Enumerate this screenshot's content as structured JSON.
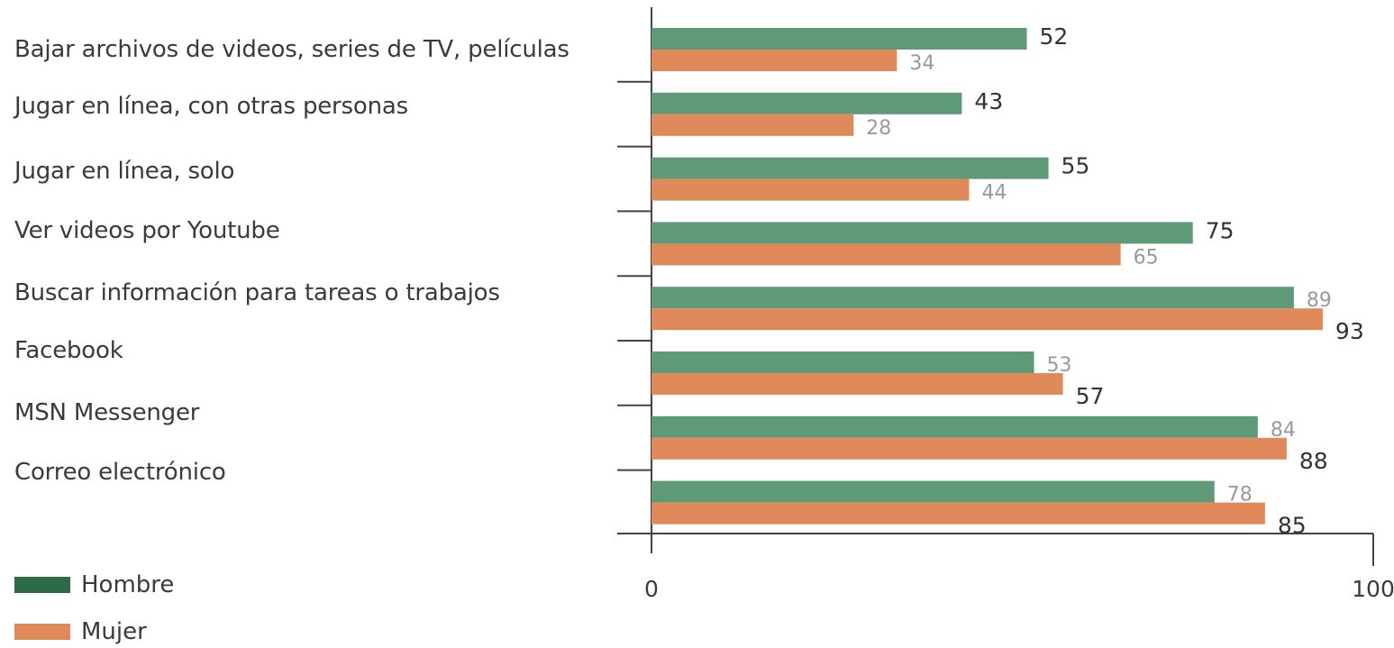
{
  "chart_data": {
    "type": "bar",
    "orientation": "horizontal",
    "categories": [
      "Bajar archivos de videos, series de TV, películas",
      "Jugar en línea, con otras personas",
      "Jugar en línea, solo",
      "Ver videos por Youtube",
      "Buscar información para tareas o trabajos",
      "Facebook",
      "MSN Messenger",
      "Correo electrónico"
    ],
    "series": [
      {
        "name": "Hombre",
        "values": [
          52,
          43,
          55,
          75,
          89,
          53,
          84,
          78
        ]
      },
      {
        "name": "Mujer",
        "values": [
          34,
          28,
          44,
          65,
          93,
          57,
          88,
          85
        ]
      }
    ],
    "xlim": [
      0,
      100
    ],
    "xticks": [
      "0",
      "100"
    ],
    "legend": "bottom-left",
    "grid": false,
    "colors": {
      "Hombre_bar": "#5e9a78",
      "Hombre_swatch": "#2f6a46",
      "Mujer_bar": "#e0895a",
      "label_dark": "#333333",
      "label_light": "#9a9a9a",
      "axis": "#444444"
    }
  }
}
